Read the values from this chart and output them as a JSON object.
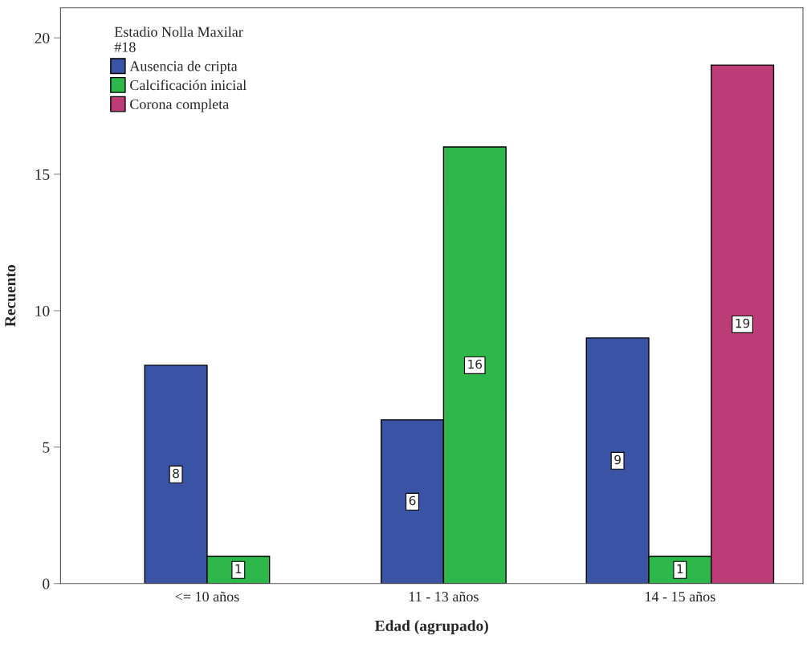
{
  "chart_data": {
    "type": "bar",
    "xlabel": "Edad (agrupado)",
    "ylabel": "Recuento",
    "legend_title": "Estadio Nolla Maxilar\n#18",
    "categories": [
      "<= 10 años",
      "11 - 13 años",
      "14 - 15 años"
    ],
    "series": [
      {
        "name": "Ausencia de cripta",
        "color": "#3a53a4",
        "values": [
          8,
          6,
          9
        ]
      },
      {
        "name": "Calcificación inicial",
        "color": "#2eb84b",
        "values": [
          1,
          16,
          1
        ]
      },
      {
        "name": "Corona completa",
        "color": "#bc3c78",
        "values": [
          null,
          null,
          19
        ]
      }
    ],
    "ylim": [
      0,
      21.1
    ],
    "yticks": [
      0,
      5,
      10,
      15,
      20
    ],
    "data_labels": true,
    "legend": "top left",
    "grid": false
  }
}
